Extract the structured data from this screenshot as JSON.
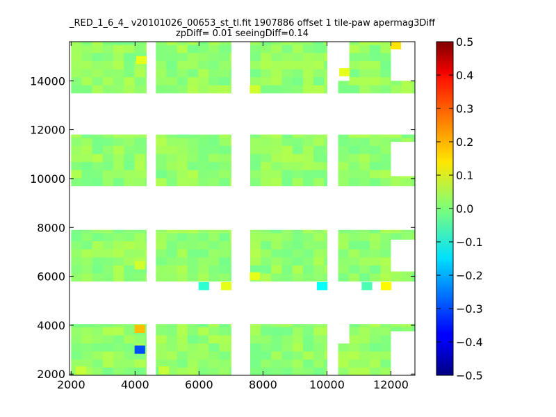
{
  "chart_data": {
    "type": "heatmap",
    "title": "_RED_1_6_4_ v20101026_00653_st_tl.fit 1907886 offset 1 tile-paw apermag3Diff",
    "subtitle": "zpDiff= 0.01 seeingDiff=0.14",
    "xlabel": "",
    "ylabel": "",
    "xlim": [
      1950,
      12750
    ],
    "ylim": [
      1950,
      15600
    ],
    "x_ticks": [
      "2000",
      "4000",
      "6000",
      "8000",
      "10000",
      "12000"
    ],
    "y_ticks": [
      "2000",
      "4000",
      "6000",
      "8000",
      "10000",
      "12000",
      "14000"
    ],
    "colorbar": {
      "range": [
        -0.5,
        0.5
      ],
      "ticks": [
        "0.5",
        "0.4",
        "0.3",
        "0.2",
        "0.1",
        "0.0",
        "−0.1",
        "−0.2",
        "−0.3",
        "−0.4",
        "−0.5"
      ],
      "colormap": "jet"
    },
    "default_value": 0.02,
    "blocks": [
      {
        "x": [
          2000,
          4350
        ],
        "y": [
          1950,
          4050
        ]
      },
      {
        "x": [
          4650,
          7000
        ],
        "y": [
          1950,
          4050
        ]
      },
      {
        "x": [
          7600,
          10000
        ],
        "y": [
          1950,
          4050
        ]
      },
      {
        "x": [
          10350,
          12750
        ],
        "y": [
          1950,
          4050
        ]
      },
      {
        "x": [
          2000,
          4350
        ],
        "y": [
          5800,
          7900
        ]
      },
      {
        "x": [
          4650,
          7000
        ],
        "y": [
          5800,
          7900
        ]
      },
      {
        "x": [
          7600,
          10000
        ],
        "y": [
          5800,
          7900
        ]
      },
      {
        "x": [
          10350,
          12750
        ],
        "y": [
          5800,
          7900
        ]
      },
      {
        "x": [
          2000,
          4350
        ],
        "y": [
          9700,
          11800
        ]
      },
      {
        "x": [
          4650,
          7000
        ],
        "y": [
          9700,
          11800
        ]
      },
      {
        "x": [
          7600,
          10000
        ],
        "y": [
          9700,
          11800
        ]
      },
      {
        "x": [
          10350,
          12750
        ],
        "y": [
          9700,
          11800
        ]
      },
      {
        "x": [
          2000,
          4350
        ],
        "y": [
          13500,
          15600
        ]
      },
      {
        "x": [
          4650,
          7000
        ],
        "y": [
          13500,
          15600
        ]
      },
      {
        "x": [
          7600,
          10000
        ],
        "y": [
          13500,
          15600
        ]
      },
      {
        "x": [
          10350,
          12750
        ],
        "y": [
          13500,
          15600
        ]
      }
    ],
    "empty_regions": [
      {
        "x": [
          12000,
          12750
        ],
        "y": [
          14000,
          15600
        ]
      },
      {
        "x": [
          10350,
          10700
        ],
        "y": [
          14000,
          15600
        ]
      },
      {
        "x": [
          12000,
          12750
        ],
        "y": [
          10100,
          11500
        ]
      },
      {
        "x": [
          12000,
          12750
        ],
        "y": [
          6200,
          7500
        ]
      },
      {
        "x": [
          12000,
          12750
        ],
        "y": [
          1950,
          3750
        ]
      },
      {
        "x": [
          10350,
          10700
        ],
        "y": [
          3250,
          4050
        ]
      }
    ],
    "highlights": [
      {
        "x": 12150,
        "y": 15450,
        "value": 0.15
      },
      {
        "x": 4200,
        "y": 14850,
        "value": 0.1
      },
      {
        "x": 10550,
        "y": 14350,
        "value": 0.1
      },
      {
        "x": 7750,
        "y": 13650,
        "value": 0.08
      },
      {
        "x": 4150,
        "y": 3850,
        "value": 0.19
      },
      {
        "x": 4150,
        "y": 3000,
        "value": -0.3
      },
      {
        "x": 6150,
        "y": 5600,
        "value": -0.08
      },
      {
        "x": 6850,
        "y": 5600,
        "value": 0.1
      },
      {
        "x": 9850,
        "y": 5600,
        "value": -0.12
      },
      {
        "x": 11850,
        "y": 5600,
        "value": 0.13
      },
      {
        "x": 11250,
        "y": 5600,
        "value": -0.05
      },
      {
        "x": 7750,
        "y": 6000,
        "value": 0.1
      },
      {
        "x": 4150,
        "y": 6450,
        "value": 0.08
      },
      {
        "x": 2300,
        "y": 2150,
        "value": 0.07
      },
      {
        "x": 4900,
        "y": 2150,
        "value": 0.07
      }
    ]
  }
}
